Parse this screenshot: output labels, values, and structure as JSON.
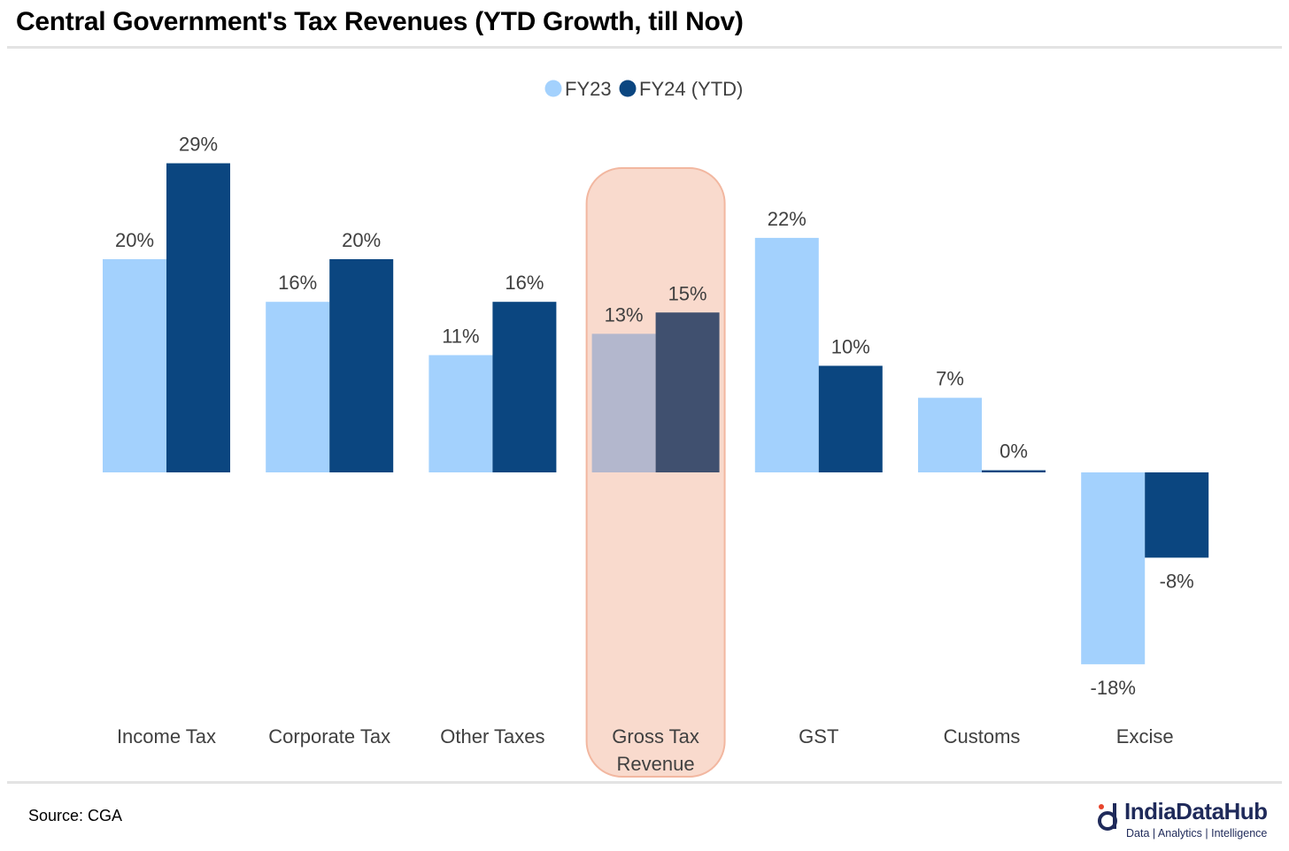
{
  "header": {
    "title": "Central Government's Tax Revenues (YTD Growth, till Nov)"
  },
  "footer": {
    "source": "Source: CGA"
  },
  "brand": {
    "name": "IndiaDataHub",
    "tagline": "Data | Analytics | Intelligence"
  },
  "colors": {
    "fy23": "#a3d1fd",
    "fy24": "#0b4680",
    "fy23_highlight": "#b3b7cd",
    "fy24_highlight": "#40506f",
    "highlight_fill": "#f9dacd",
    "highlight_stroke": "#f2b7a0",
    "label_text": "#404040"
  },
  "chart_data": {
    "type": "bar",
    "title": "Central Government's Tax Revenues (YTD Growth, till Nov)",
    "categories": [
      "Income Tax",
      "Corporate Tax",
      "Other Taxes",
      "Gross Tax Revenue",
      "GST",
      "Customs",
      "Excise"
    ],
    "category_lines": [
      [
        "Income Tax"
      ],
      [
        "Corporate Tax"
      ],
      [
        "Other Taxes"
      ],
      [
        "Gross Tax",
        "Revenue"
      ],
      [
        "GST"
      ],
      [
        "Customs"
      ],
      [
        "Excise"
      ]
    ],
    "series": [
      {
        "name": "FY23",
        "values": [
          20,
          16,
          11,
          13,
          22,
          7,
          -18
        ],
        "labels": [
          "20%",
          "16%",
          "11%",
          "13%",
          "22%",
          "7%",
          "-18%"
        ]
      },
      {
        "name": "FY24 (YTD)",
        "values": [
          29,
          20,
          16,
          15,
          10,
          0.2,
          -8
        ],
        "labels": [
          "29%",
          "20%",
          "16%",
          "15%",
          "10%",
          "0%",
          "-8%"
        ]
      }
    ],
    "highlighted_category": "Gross Tax Revenue",
    "legend_position": "top-center",
    "grid": false,
    "ylim": [
      -22,
      32
    ]
  }
}
